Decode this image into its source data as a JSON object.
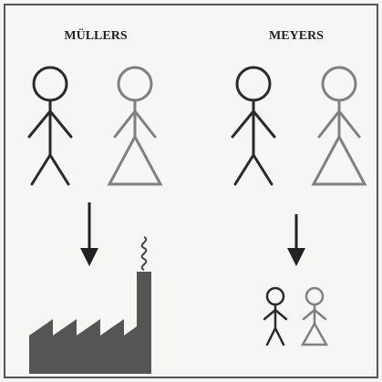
{
  "labels": {
    "left": "MÜLLERS",
    "right": "MEYERS"
  }
}
